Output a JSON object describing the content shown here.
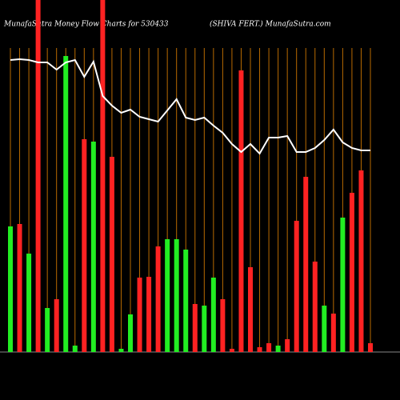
{
  "chart_data": {
    "type": "bar",
    "title": "MunafaSutra  Money Flow  Charts for 530433",
    "subtitle": "(SHIVA FERT.) MunafaSutra.com",
    "categories": [
      null,
      null,
      null,
      null,
      null,
      null,
      null,
      null,
      null,
      null,
      null,
      null,
      null,
      null,
      null,
      null,
      null,
      null,
      null,
      null,
      null,
      null,
      null,
      null,
      null,
      null,
      null,
      null,
      null,
      null,
      null,
      null,
      null,
      null,
      null,
      null,
      null,
      null,
      null,
      null
    ],
    "values": [
      157,
      160,
      123,
      440,
      55,
      66,
      370,
      8,
      266,
      263,
      440,
      244,
      4,
      47,
      93,
      94,
      132,
      141,
      141,
      128,
      60,
      58,
      93,
      66,
      4,
      352,
      106,
      6,
      11,
      8,
      16,
      164,
      219,
      113,
      58,
      48,
      168,
      199,
      227,
      11
    ],
    "colors": [
      "#22ee22",
      "#ff2222",
      "#22ee22",
      "#ff2222",
      "#22ee22",
      "#ff2222",
      "#22ee22",
      "#22ee22",
      "#ff2222",
      "#22ee22",
      "#ff2222",
      "#ff2222",
      "#22ee22",
      "#22ee22",
      "#ff2222",
      "#ff2222",
      "#ff2222",
      "#22ee22",
      "#22ee22",
      "#22ee22",
      "#ff2222",
      "#22ee22",
      "#22ee22",
      "#ff2222",
      "#ff2222",
      "#ff2222",
      "#ff2222",
      "#ff2222",
      "#ff2222",
      "#22ee22",
      "#ff2222",
      "#ff2222",
      "#ff2222",
      "#ff2222",
      "#22ee22",
      "#ff2222",
      "#22ee22",
      "#ff2222",
      "#ff2222",
      "#ff2222"
    ],
    "line": {
      "color": "#ffffff",
      "values": [
        365,
        366,
        365,
        362,
        362,
        353,
        362,
        365,
        344,
        363,
        320,
        308,
        299,
        303,
        294,
        291,
        288,
        302,
        316,
        293,
        290,
        293,
        283,
        274,
        260,
        250,
        260,
        248,
        268,
        268,
        270,
        250,
        250,
        255,
        265,
        278,
        262,
        255,
        252,
        252
      ]
    },
    "ylim": [
      0,
      440
    ]
  }
}
